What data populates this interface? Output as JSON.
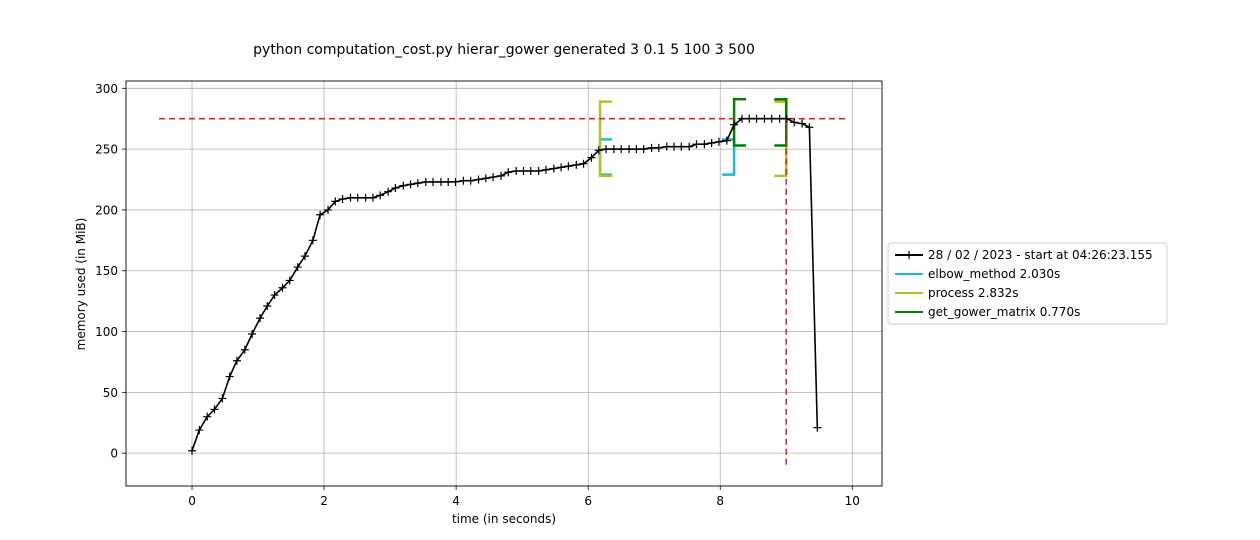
{
  "chart_data": {
    "type": "line",
    "title": "python computation_cost.py hierar_gower generated 3 0.1 5 100 3 500",
    "xlabel": "time (in seconds)",
    "ylabel": "memory used (in MiB)",
    "xlim": [
      -1.0,
      10.45
    ],
    "ylim": [
      -27,
      306
    ],
    "xticks": [
      0,
      2,
      4,
      6,
      8,
      10
    ],
    "yticks": [
      0,
      50,
      100,
      150,
      200,
      250,
      300
    ],
    "grid": true,
    "legend_position": "center-right-outside",
    "series": [
      {
        "name": "28 / 02 / 2023 - start at 04:26:23.155",
        "color": "#000000",
        "marker": "plus",
        "x": [
          0.0,
          0.11,
          0.23,
          0.34,
          0.46,
          0.57,
          0.68,
          0.8,
          0.91,
          1.03,
          1.14,
          1.25,
          1.37,
          1.48,
          1.6,
          1.71,
          1.83,
          1.94,
          2.06,
          2.17,
          2.28,
          2.4,
          2.51,
          2.63,
          2.74,
          2.85,
          2.97,
          3.08,
          3.2,
          3.31,
          3.42,
          3.54,
          3.65,
          3.77,
          3.88,
          3.99,
          4.11,
          4.22,
          4.34,
          4.45,
          4.56,
          4.68,
          4.79,
          4.91,
          5.02,
          5.13,
          5.25,
          5.36,
          5.48,
          5.59,
          5.7,
          5.82,
          5.93,
          6.05,
          6.16,
          6.27,
          6.39,
          6.5,
          6.62,
          6.73,
          6.84,
          6.96,
          7.07,
          7.19,
          7.3,
          7.41,
          7.53,
          7.64,
          7.76,
          7.87,
          7.98,
          8.1,
          8.21,
          8.33,
          8.44,
          8.55,
          8.67,
          8.78,
          8.9,
          9.01,
          9.12,
          9.24,
          9.35,
          9.47
        ],
        "y": [
          2,
          19,
          30,
          36,
          45,
          63,
          76,
          85,
          98,
          111,
          121,
          130,
          136,
          142,
          153,
          162,
          175,
          196,
          200,
          207,
          209,
          210,
          210,
          210,
          210,
          212,
          215,
          218,
          220,
          221,
          222,
          223,
          223,
          223,
          223,
          223,
          224,
          224,
          225,
          226,
          227,
          228,
          231,
          232,
          232,
          232,
          232,
          233,
          234,
          235,
          236,
          237,
          238,
          243,
          249,
          250,
          250,
          250,
          250,
          250,
          250,
          251,
          251,
          252,
          252,
          252,
          252,
          254,
          254,
          255,
          256,
          257,
          270,
          275,
          275,
          275,
          275,
          275,
          275,
          275,
          272,
          271,
          268,
          21
        ]
      }
    ],
    "function_brackets": [
      {
        "name": "elbow_method 2.030s",
        "color": "#17becf",
        "start": 6.18,
        "end": 8.21,
        "low": 229,
        "high": 258
      },
      {
        "name": "process 2.832s",
        "color": "#bcbd22",
        "start": 6.18,
        "end": 9.0,
        "low": 228,
        "high": 289
      },
      {
        "name": "get_gower_matrix 0.770s",
        "color": "#008000",
        "start": 8.21,
        "end": 9.0,
        "low": 253,
        "high": 291
      }
    ],
    "peak_lines": {
      "color": "#d62728",
      "max_memory": 275,
      "max_time": 9.0,
      "h_range": [
        -0.5,
        9.9
      ],
      "v_bottom": -12
    }
  }
}
